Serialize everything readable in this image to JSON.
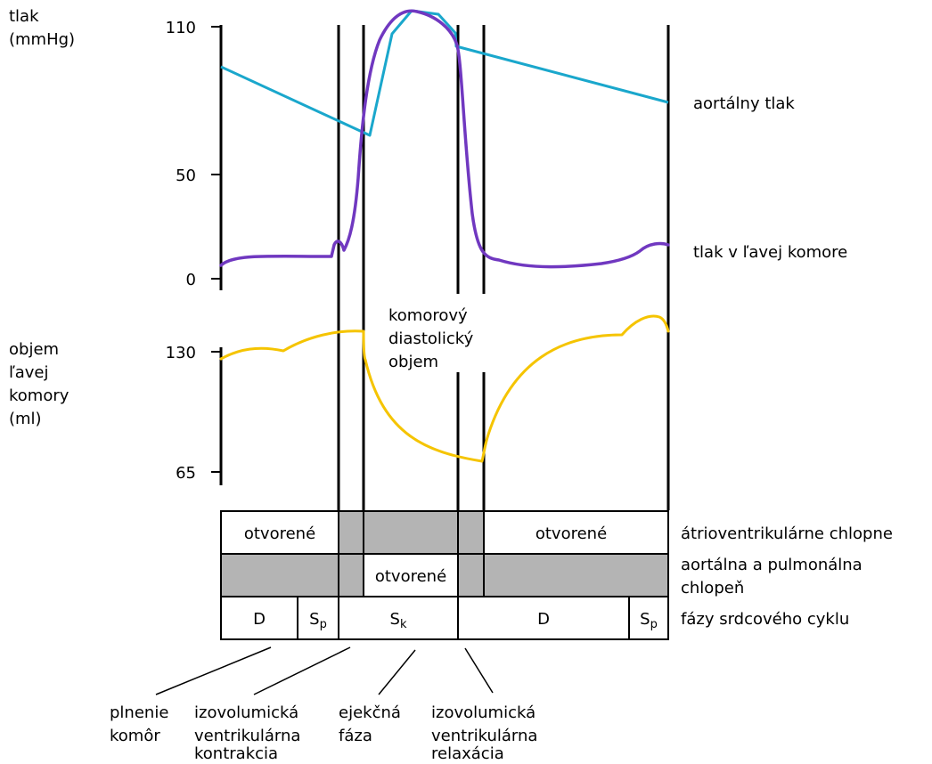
{
  "pressure_axis": {
    "label_lines": [
      "tlak",
      "(mmHg)"
    ],
    "ticks": [
      "110",
      "50",
      "0"
    ]
  },
  "volume_axis": {
    "label_lines": [
      "objem",
      "ľavej",
      "komory",
      "(ml)"
    ],
    "ticks": [
      "130",
      "65"
    ]
  },
  "curve_labels": {
    "aortic": "aortálny tlak",
    "ventricular": "tlak v ľavej komore"
  },
  "volume_note_lines": [
    "komorový",
    "diastolický",
    "objem"
  ],
  "valves": {
    "atrioventricular": {
      "label": "átrioventrikulárne chlopne",
      "open_left": "otvorené",
      "open_right": "otvorené"
    },
    "aortic_pulmonary": {
      "label_lines": [
        "aortálna a pulmonálna",
        "chlopeň"
      ],
      "open": "otvorené"
    }
  },
  "phases": {
    "label": "fázy srdcového cyklu",
    "d1": "D",
    "sp1_main": "S",
    "sp1_sub": "p",
    "sk_main": "S",
    "sk_sub": "k",
    "d2": "D",
    "sp2_main": "S",
    "sp2_sub": "p"
  },
  "annotations": {
    "filling": [
      "plnenie",
      "komôr"
    ],
    "isovolumic_contraction": [
      "izovolumická",
      "ventrikulárna",
      "kontrakcia"
    ],
    "ejection": [
      "ejekčná",
      "fáza"
    ],
    "isovolumic_relaxation": [
      "izovolumická",
      "ventrikulárna",
      "relaxácia"
    ]
  },
  "colors": {
    "aortic_pressure": "#1aa7cc",
    "ventricular_pressure": "#7038c0",
    "ventricular_volume": "#f5c400",
    "closed_valve": "#b4b4b4"
  }
}
